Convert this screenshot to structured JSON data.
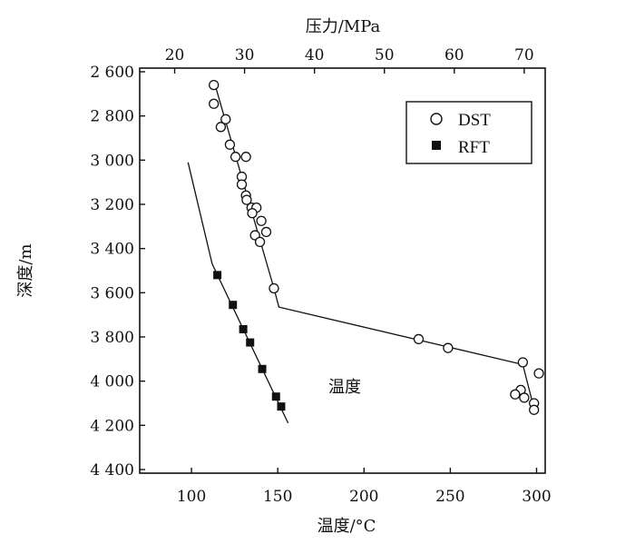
{
  "chart_data": {
    "type": "scatter",
    "top_axis": {
      "label": "压力/MPa",
      "ticks": [
        20,
        30,
        40,
        50,
        60,
        70
      ],
      "tick_labels": [
        "20",
        "30",
        "40",
        "50",
        "60",
        "70"
      ],
      "range": [
        15,
        73
      ]
    },
    "bottom_axis": {
      "label": "温度/°C",
      "ticks": [
        100,
        150,
        200,
        250,
        300
      ],
      "tick_labels": [
        "100",
        "150",
        "200",
        "250",
        "300"
      ],
      "range": [
        70,
        305
      ]
    },
    "y_axis": {
      "label": "深度/m",
      "ticks": [
        2600,
        2800,
        3000,
        3200,
        3400,
        3600,
        3800,
        4000,
        4200,
        4400
      ],
      "tick_labels": [
        "2 600",
        "2 800",
        "3 000",
        "3 200",
        "3 400",
        "3 600",
        "3 800",
        "4 000",
        "4 200",
        "4 400"
      ],
      "range": [
        2600,
        4400
      ],
      "inverted": true
    },
    "legend": {
      "placement": "top-right",
      "entries": [
        {
          "label": "DST",
          "marker": "open-circle"
        },
        {
          "label": "RFT",
          "marker": "filled-square"
        }
      ]
    },
    "series": [
      {
        "name": "DST",
        "axis": "pressure",
        "marker": "open-circle",
        "points": [
          {
            "x": 25.6,
            "y": 2660
          },
          {
            "x": 25.6,
            "y": 2745
          },
          {
            "x": 27.3,
            "y": 2815
          },
          {
            "x": 26.6,
            "y": 2850
          },
          {
            "x": 27.9,
            "y": 2930
          },
          {
            "x": 28.7,
            "y": 2985
          },
          {
            "x": 30.2,
            "y": 2985
          },
          {
            "x": 29.6,
            "y": 3075
          },
          {
            "x": 29.6,
            "y": 3110
          },
          {
            "x": 30.2,
            "y": 3160
          },
          {
            "x": 30.3,
            "y": 3180
          },
          {
            "x": 31.0,
            "y": 3215
          },
          {
            "x": 31.7,
            "y": 3215
          },
          {
            "x": 31.1,
            "y": 3240
          },
          {
            "x": 32.4,
            "y": 3275
          },
          {
            "x": 33.1,
            "y": 3325
          },
          {
            "x": 31.5,
            "y": 3340
          },
          {
            "x": 32.2,
            "y": 3370
          },
          {
            "x": 34.2,
            "y": 3580
          },
          {
            "x": 54.9,
            "y": 3810
          },
          {
            "x": 59.1,
            "y": 3850
          },
          {
            "x": 69.8,
            "y": 3915
          },
          {
            "x": 72.1,
            "y": 3965
          },
          {
            "x": 69.5,
            "y": 4040
          },
          {
            "x": 68.7,
            "y": 4060
          },
          {
            "x": 70.0,
            "y": 4075
          },
          {
            "x": 71.4,
            "y": 4100
          },
          {
            "x": 71.4,
            "y": 4130
          }
        ]
      },
      {
        "name": "RFT",
        "axis": "temperature",
        "marker": "filled-square",
        "points": [
          {
            "x": 115,
            "y": 3520
          },
          {
            "x": 124,
            "y": 3655
          },
          {
            "x": 130,
            "y": 3765
          },
          {
            "x": 134,
            "y": 3825
          },
          {
            "x": 141,
            "y": 3945
          },
          {
            "x": 149,
            "y": 4070
          },
          {
            "x": 152,
            "y": 4115
          }
        ]
      }
    ],
    "lines": [
      {
        "name": "pressure trend",
        "axis": "pressure",
        "points": [
          {
            "x": 25.6,
            "y": 2640
          },
          {
            "x": 34.2,
            "y": 3580
          },
          {
            "x": 34.9,
            "y": 3665
          },
          {
            "x": 69.8,
            "y": 3925
          },
          {
            "x": 71.5,
            "y": 4135
          }
        ]
      },
      {
        "name": "temperature trend",
        "axis": "temperature",
        "points": [
          {
            "x": 98,
            "y": 3010
          },
          {
            "x": 112,
            "y": 3470
          },
          {
            "x": 156,
            "y": 4190
          }
        ]
      }
    ],
    "annotations": [
      {
        "text": "温度",
        "axis": "temperature",
        "x": 168,
        "y": 4020
      }
    ]
  }
}
